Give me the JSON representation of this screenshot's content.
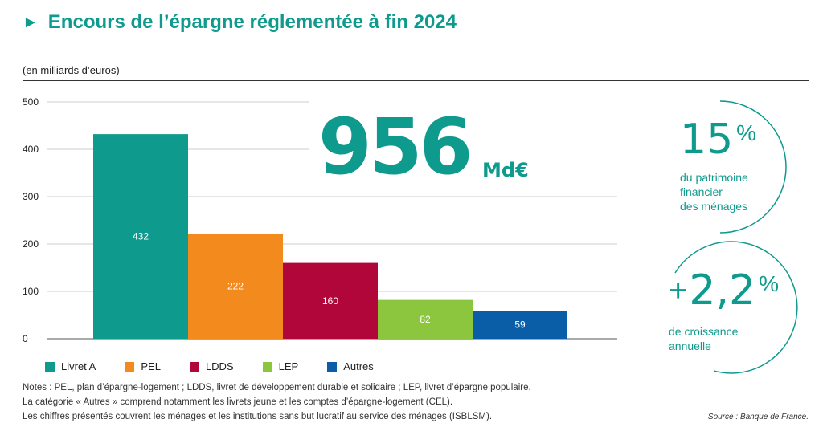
{
  "header": {
    "title": "Encours de l’épargne réglementée à fin 2024",
    "unit": "(en milliards d’euros)"
  },
  "highlight": {
    "total": "956",
    "total_unit": "Md€"
  },
  "stats": [
    {
      "value": "15",
      "unit": "%",
      "label": [
        "du patrimoine",
        "financier",
        "des ménages"
      ]
    },
    {
      "prefix": "+",
      "value": "2,2",
      "unit": "%",
      "label": [
        "de croissance",
        "annuelle"
      ]
    }
  ],
  "chart_data": {
    "type": "bar",
    "categories": [
      "Livret A",
      "PEL",
      "LDDS",
      "LEP",
      "Autres"
    ],
    "values": [
      432,
      222,
      160,
      82,
      59
    ],
    "colors": [
      "#0f9a8e",
      "#f28a1e",
      "#b0063a",
      "#8cc63f",
      "#0a5ea8"
    ],
    "yticks": [
      0,
      100,
      200,
      300,
      400,
      500
    ],
    "ylim": [
      0,
      500
    ],
    "title": "Encours de l’épargne réglementée à fin 2024",
    "xlabel": "",
    "ylabel": "(en milliards d’euros)",
    "legend_position": "bottom",
    "grid": true
  },
  "notes": [
    "Notes : PEL, plan d’épargne-logement ; LDDS, livret de développement durable et solidaire ; LEP, livret d’épargne populaire.",
    "La catégorie « Autres » comprend notamment les livrets jeune et les comptes d’épargne-logement (CEL).",
    "Les chiffres présentés couvrent les ménages et les institutions sans but lucratif au service des ménages (ISBLSM)."
  ],
  "source": "Source : Banque de France."
}
